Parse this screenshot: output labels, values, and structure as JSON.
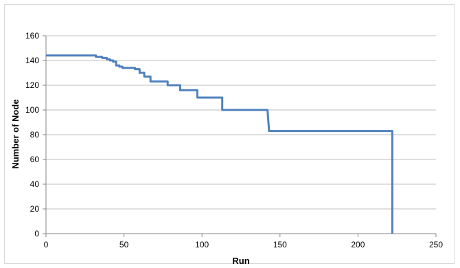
{
  "chart_data": {
    "type": "line",
    "title": "",
    "xlabel": "Run",
    "ylabel": "Number of Node",
    "xlim": [
      0,
      250
    ],
    "ylim": [
      0,
      160
    ],
    "x_ticks": [
      0,
      50,
      100,
      150,
      200,
      250
    ],
    "y_ticks": [
      0,
      20,
      40,
      60,
      80,
      100,
      120,
      140,
      160
    ],
    "grid": "horizontal",
    "legend": "none",
    "series": [
      {
        "color": "#4f81bd",
        "points": [
          [
            0,
            144
          ],
          [
            32,
            144
          ],
          [
            32,
            143
          ],
          [
            36,
            143
          ],
          [
            36,
            142
          ],
          [
            39,
            142
          ],
          [
            39,
            141
          ],
          [
            41,
            141
          ],
          [
            41,
            140
          ],
          [
            43,
            140
          ],
          [
            43,
            139
          ],
          [
            45,
            139
          ],
          [
            45,
            136
          ],
          [
            47,
            136
          ],
          [
            47,
            135
          ],
          [
            49,
            135
          ],
          [
            49,
            134
          ],
          [
            57,
            134
          ],
          [
            57,
            133
          ],
          [
            60,
            133
          ],
          [
            60,
            130
          ],
          [
            63,
            130
          ],
          [
            63,
            127
          ],
          [
            67,
            127
          ],
          [
            67,
            123
          ],
          [
            78,
            123
          ],
          [
            78,
            120
          ],
          [
            86,
            120
          ],
          [
            86,
            116
          ],
          [
            97,
            116
          ],
          [
            97,
            110
          ],
          [
            113,
            110
          ],
          [
            113,
            100
          ],
          [
            142,
            100
          ],
          [
            143,
            83
          ],
          [
            222,
            83
          ],
          [
            222,
            0
          ]
        ]
      }
    ]
  }
}
